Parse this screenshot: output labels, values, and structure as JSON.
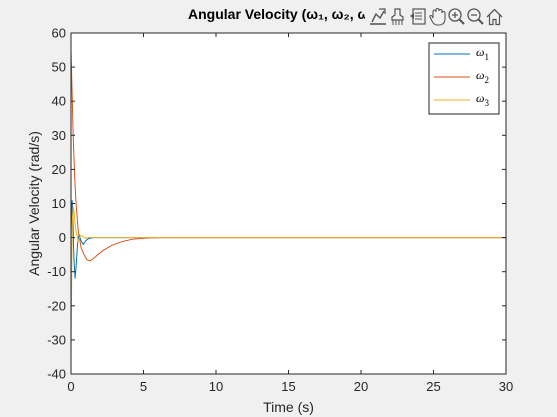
{
  "chart_data": {
    "type": "line",
    "title": "Angular Velocity (ω₁, ω₂, ω₃)",
    "xlabel": "Time (s)",
    "ylabel": "Angular Velocity (rad/s)",
    "xlim": [
      0,
      30
    ],
    "ylim": [
      -40,
      60
    ],
    "xticks": [
      0,
      5,
      10,
      15,
      20,
      25,
      30
    ],
    "yticks": [
      -40,
      -30,
      -20,
      -10,
      0,
      10,
      20,
      30,
      40,
      50,
      60
    ],
    "grid": false,
    "legend_position": "top-right",
    "series": [
      {
        "name": "ω₁",
        "color": "#0072BD",
        "x": [
          0,
          0.04,
          0.08,
          0.14,
          0.2,
          0.28,
          0.36,
          0.45,
          0.55,
          0.7,
          0.85,
          1.0,
          1.2,
          1.5,
          2.0,
          3.0,
          30
        ],
        "y": [
          0,
          6,
          11,
          4,
          -6,
          -12,
          -8,
          -2,
          1,
          -1,
          -2,
          -1,
          -0.3,
          0,
          0,
          0,
          0
        ]
      },
      {
        "name": "ω₂",
        "color": "#D95319",
        "x": [
          0,
          0.03,
          0.08,
          0.15,
          0.25,
          0.35,
          0.5,
          0.7,
          0.9,
          1.1,
          1.3,
          1.5,
          1.8,
          2.2,
          2.8,
          3.5,
          4.2,
          5.0,
          6.0,
          7.0,
          30
        ],
        "y": [
          55,
          50,
          42,
          30,
          18,
          10,
          2,
          -3,
          -5,
          -6.5,
          -6.8,
          -6.3,
          -5.2,
          -3.8,
          -2.3,
          -1.2,
          -0.5,
          -0.2,
          0,
          0,
          0
        ]
      },
      {
        "name": "ω₃",
        "color": "#EDB120",
        "x": [
          0,
          0.03,
          0.06,
          0.1,
          0.15,
          0.2,
          0.28,
          0.38,
          0.5,
          0.65,
          0.8,
          1.0,
          1.3,
          1.6,
          2.0,
          30
        ],
        "y": [
          -35,
          -20,
          -5,
          5,
          9,
          8,
          4,
          1,
          -1,
          0.5,
          0.5,
          -0.2,
          0.1,
          0,
          0,
          0
        ]
      }
    ]
  },
  "legend": {
    "items": [
      {
        "base": "ω",
        "sub": "1",
        "color": "#0072BD"
      },
      {
        "base": "ω",
        "sub": "2",
        "color": "#D95319"
      },
      {
        "base": "ω",
        "sub": "3",
        "color": "#EDB120"
      }
    ]
  },
  "toolbar": {
    "icons": [
      "data-tips-icon",
      "brush-icon",
      "link-icon",
      "pan-icon",
      "zoom-in-icon",
      "zoom-out-icon",
      "home-icon"
    ]
  }
}
